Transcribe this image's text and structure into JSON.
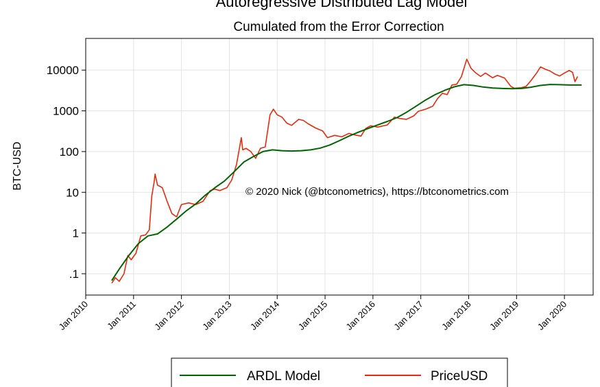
{
  "chart_data": {
    "type": "line",
    "title": "Autoregressive Distributed Lag Model",
    "subtitle": "Cumulated from the Error Correction",
    "xlabel": "",
    "ylabel": "BTC-USD",
    "yscale": "log",
    "xlim": [
      2010.0,
      2020.6
    ],
    "ylim": [
      0.03,
      60000
    ],
    "grid": true,
    "x_ticks": [
      {
        "label": "Jan 2010",
        "value": 2010
      },
      {
        "label": "Jan 2011",
        "value": 2011
      },
      {
        "label": "Jan 2012",
        "value": 2012
      },
      {
        "label": "Jan 2013",
        "value": 2013
      },
      {
        "label": "Jan 2014",
        "value": 2014
      },
      {
        "label": "Jan 2015",
        "value": 2015
      },
      {
        "label": "Jan 2016",
        "value": 2016
      },
      {
        "label": "Jan 2017",
        "value": 2017
      },
      {
        "label": "Jan 2018",
        "value": 2018
      },
      {
        "label": "Jan 2019",
        "value": 2019
      },
      {
        "label": "Jan 2020",
        "value": 2020
      }
    ],
    "y_ticks": [
      {
        "label": ".1",
        "value": 0.1
      },
      {
        "label": "1",
        "value": 1
      },
      {
        "label": "10",
        "value": 10
      },
      {
        "label": "100",
        "value": 100
      },
      {
        "label": "1000",
        "value": 1000
      },
      {
        "label": "10000",
        "value": 10000
      }
    ],
    "annotation": "© 2020 Nick (@btconometrics), https://btconometrics.com",
    "legend_position": "bottom",
    "series": [
      {
        "name": "ARDL Model",
        "color": "#006400",
        "points": [
          [
            2010.55,
            0.07
          ],
          [
            2010.7,
            0.13
          ],
          [
            2010.9,
            0.28
          ],
          [
            2011.1,
            0.55
          ],
          [
            2011.3,
            0.85
          ],
          [
            2011.5,
            0.95
          ],
          [
            2011.7,
            1.4
          ],
          [
            2011.9,
            2.2
          ],
          [
            2012.1,
            3.5
          ],
          [
            2012.3,
            5.2
          ],
          [
            2012.5,
            8.5
          ],
          [
            2012.7,
            13
          ],
          [
            2012.9,
            19
          ],
          [
            2013.1,
            32
          ],
          [
            2013.3,
            55
          ],
          [
            2013.5,
            75
          ],
          [
            2013.7,
            100
          ],
          [
            2013.9,
            110
          ],
          [
            2014.1,
            105
          ],
          [
            2014.3,
            103
          ],
          [
            2014.5,
            105
          ],
          [
            2014.7,
            110
          ],
          [
            2014.9,
            122
          ],
          [
            2015.1,
            145
          ],
          [
            2015.3,
            185
          ],
          [
            2015.5,
            240
          ],
          [
            2015.7,
            300
          ],
          [
            2015.9,
            370
          ],
          [
            2016.1,
            450
          ],
          [
            2016.3,
            550
          ],
          [
            2016.5,
            680
          ],
          [
            2016.7,
            920
          ],
          [
            2016.9,
            1300
          ],
          [
            2017.1,
            1850
          ],
          [
            2017.3,
            2500
          ],
          [
            2017.5,
            3200
          ],
          [
            2017.7,
            3900
          ],
          [
            2017.9,
            4400
          ],
          [
            2018.1,
            4200
          ],
          [
            2018.3,
            3850
          ],
          [
            2018.5,
            3650
          ],
          [
            2018.7,
            3550
          ],
          [
            2018.9,
            3500
          ],
          [
            2019.1,
            3550
          ],
          [
            2019.3,
            3800
          ],
          [
            2019.5,
            4200
          ],
          [
            2019.7,
            4450
          ],
          [
            2019.9,
            4400
          ],
          [
            2020.1,
            4300
          ],
          [
            2020.35,
            4300
          ]
        ]
      },
      {
        "name": "PriceUSD",
        "color": "#e8290b",
        "points": [
          [
            2010.55,
            0.06
          ],
          [
            2010.62,
            0.08
          ],
          [
            2010.7,
            0.065
          ],
          [
            2010.8,
            0.1
          ],
          [
            2010.88,
            0.28
          ],
          [
            2010.95,
            0.22
          ],
          [
            2011.05,
            0.32
          ],
          [
            2011.15,
            0.85
          ],
          [
            2011.25,
            0.9
          ],
          [
            2011.33,
            1.2
          ],
          [
            2011.38,
            8
          ],
          [
            2011.43,
            18
          ],
          [
            2011.45,
            28
          ],
          [
            2011.5,
            15
          ],
          [
            2011.6,
            13
          ],
          [
            2011.7,
            6
          ],
          [
            2011.8,
            3
          ],
          [
            2011.9,
            2.5
          ],
          [
            2012.0,
            5
          ],
          [
            2012.15,
            5.5
          ],
          [
            2012.3,
            5
          ],
          [
            2012.45,
            6
          ],
          [
            2012.6,
            11
          ],
          [
            2012.7,
            12
          ],
          [
            2012.8,
            11
          ],
          [
            2012.95,
            13
          ],
          [
            2013.05,
            20
          ],
          [
            2013.15,
            48
          ],
          [
            2013.25,
            220
          ],
          [
            2013.28,
            110
          ],
          [
            2013.35,
            120
          ],
          [
            2013.45,
            100
          ],
          [
            2013.55,
            68
          ],
          [
            2013.65,
            120
          ],
          [
            2013.75,
            130
          ],
          [
            2013.85,
            800
          ],
          [
            2013.92,
            1100
          ],
          [
            2014.0,
            800
          ],
          [
            2014.1,
            700
          ],
          [
            2014.2,
            500
          ],
          [
            2014.3,
            440
          ],
          [
            2014.45,
            620
          ],
          [
            2014.55,
            580
          ],
          [
            2014.65,
            480
          ],
          [
            2014.8,
            380
          ],
          [
            2014.95,
            320
          ],
          [
            2015.05,
            220
          ],
          [
            2015.2,
            250
          ],
          [
            2015.35,
            230
          ],
          [
            2015.5,
            280
          ],
          [
            2015.6,
            260
          ],
          [
            2015.75,
            240
          ],
          [
            2015.85,
            370
          ],
          [
            2015.95,
            430
          ],
          [
            2016.1,
            400
          ],
          [
            2016.3,
            450
          ],
          [
            2016.45,
            700
          ],
          [
            2016.55,
            650
          ],
          [
            2016.7,
            620
          ],
          [
            2016.85,
            750
          ],
          [
            2016.95,
            980
          ],
          [
            2017.1,
            1100
          ],
          [
            2017.25,
            1300
          ],
          [
            2017.35,
            2000
          ],
          [
            2017.45,
            2700
          ],
          [
            2017.55,
            2500
          ],
          [
            2017.65,
            4300
          ],
          [
            2017.75,
            4500
          ],
          [
            2017.85,
            7000
          ],
          [
            2017.96,
            18500
          ],
          [
            2018.05,
            11000
          ],
          [
            2018.15,
            8500
          ],
          [
            2018.25,
            7000
          ],
          [
            2018.35,
            8500
          ],
          [
            2018.5,
            6500
          ],
          [
            2018.6,
            7400
          ],
          [
            2018.75,
            6400
          ],
          [
            2018.88,
            4000
          ],
          [
            2018.95,
            3600
          ],
          [
            2019.1,
            3700
          ],
          [
            2019.2,
            4000
          ],
          [
            2019.3,
            5500
          ],
          [
            2019.42,
            8500
          ],
          [
            2019.5,
            12000
          ],
          [
            2019.6,
            10500
          ],
          [
            2019.7,
            9500
          ],
          [
            2019.8,
            8000
          ],
          [
            2019.9,
            7200
          ],
          [
            2020.0,
            8500
          ],
          [
            2020.1,
            9800
          ],
          [
            2020.17,
            8800
          ],
          [
            2020.22,
            5200
          ],
          [
            2020.27,
            6800
          ]
        ]
      }
    ]
  }
}
